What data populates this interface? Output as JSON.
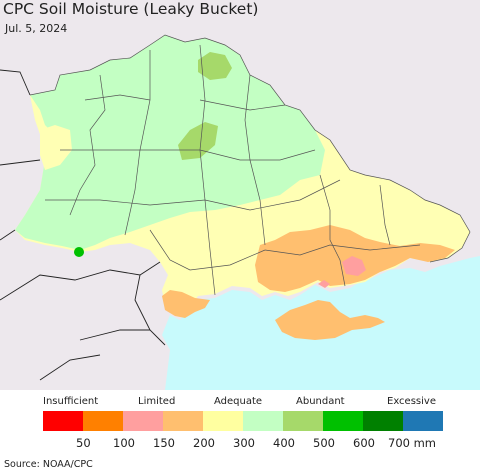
{
  "title": "CPC Soil Moisture (Leaky Bucket)",
  "date": "Jul. 5, 2024",
  "source": "Source: NOAA/CPC",
  "legend": {
    "categories": [
      "Insufficient",
      "Limited",
      "Adequate",
      "Abundant",
      "Excessive"
    ],
    "colors": [
      "#ff0000",
      "#ff8000",
      "#ff9f9f",
      "#ffbf6f",
      "#ffffa0",
      "#c3ffc3",
      "#a6d96a",
      "#00c000",
      "#008000",
      "#1f78b4"
    ],
    "ticks": [
      "50",
      "100",
      "150",
      "200",
      "300",
      "400",
      "500",
      "600",
      "700 mm"
    ]
  },
  "map_colors": {
    "sea": "#c8fafc",
    "outside": "#ede8ed",
    "adequate": "#ffffb4",
    "moist": "#c3ffc3",
    "abundant": "#a6d96a",
    "dry": "#ffbf6f",
    "verydry": "#ff9f9f",
    "wet": "#00c000",
    "border": "#555555"
  }
}
